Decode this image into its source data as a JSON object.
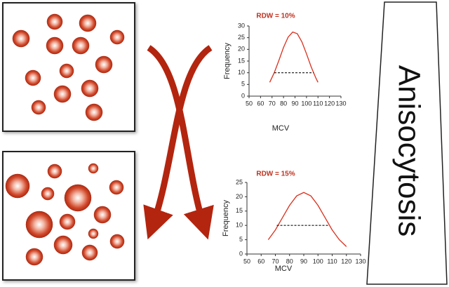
{
  "label": "Anisocytosis",
  "chart_data": [
    {
      "type": "line",
      "title": "RDW = 10%",
      "x_label": "MCV",
      "y_label": "Frequency",
      "x": [
        68,
        72,
        76,
        80,
        84,
        88,
        92,
        96,
        100,
        104,
        108,
        110
      ],
      "series": [
        {
          "color": "#d9301c",
          "values": [
            5.9,
            10.1,
            15.3,
            20.8,
            25.2,
            27.4,
            26.7,
            23.2,
            18.1,
            12.6,
            7.9,
            5.9
          ]
        }
      ],
      "reference_line": {
        "y": 10,
        "x": [
          72,
          106
        ]
      },
      "xlim": [
        50,
        130
      ],
      "xticks": [
        50,
        60,
        70,
        80,
        90,
        100,
        110,
        120,
        130
      ],
      "ylim": [
        0,
        30
      ],
      "yticks": [
        0,
        5,
        10,
        15,
        20,
        25,
        30
      ]
    },
    {
      "type": "line",
      "title": "RDW = 15%",
      "x_label": "MCV",
      "y_label": "Frequency",
      "x": [
        65,
        70,
        75,
        80,
        85,
        90,
        95,
        100,
        105,
        110,
        115,
        120
      ],
      "series": [
        {
          "color": "#d9301c",
          "values": [
            5.0,
            8.4,
            12.7,
            17.0,
            20.3,
            21.5,
            20.3,
            17.0,
            12.7,
            8.4,
            5.0,
            2.6
          ]
        }
      ],
      "reference_line": {
        "y": 10,
        "x": [
          71,
          108
        ]
      },
      "xlim": [
        50,
        130
      ],
      "xticks": [
        50,
        60,
        70,
        80,
        90,
        100,
        110,
        120,
        130
      ],
      "ylim": [
        0,
        25
      ],
      "yticks": [
        0,
        5,
        10,
        15,
        20,
        25
      ]
    }
  ]
}
